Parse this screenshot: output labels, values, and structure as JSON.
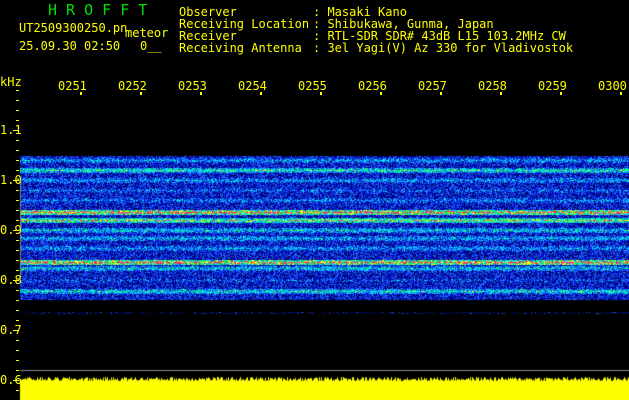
{
  "header": {
    "app_title": "H R O F F T",
    "filename": "UT2509300250.pn",
    "mode": "meteor",
    "datetime": "25.09.30 02:50",
    "counter": "0__",
    "info": [
      {
        "label": "Observer",
        "value": ": Masaki Kano"
      },
      {
        "label": "Receiving Location",
        "value": ": Shibukawa, Gunma, Japan"
      },
      {
        "label": "Receiver",
        "value": ": RTL-SDR SDR# 43dB L15 103.2MHz CW"
      },
      {
        "label": "Receiving Antenna",
        "value": ": 3el Yagi(V) Az 330 for Vladivostok"
      }
    ]
  },
  "axes": {
    "y_unit": "kHz",
    "y_ticks": [
      "1.1",
      "1.0",
      "0.9",
      "0.8",
      "0.7",
      "0.6"
    ],
    "time_ticks": [
      "0251",
      "0252",
      "0253",
      "0254",
      "0255",
      "0256",
      "0257",
      "0258",
      "0259",
      "0300"
    ]
  },
  "colors": {
    "text": "#ffff00",
    "title": "#00e000",
    "signal_strong": "#ff2060",
    "background": "#000000"
  }
}
